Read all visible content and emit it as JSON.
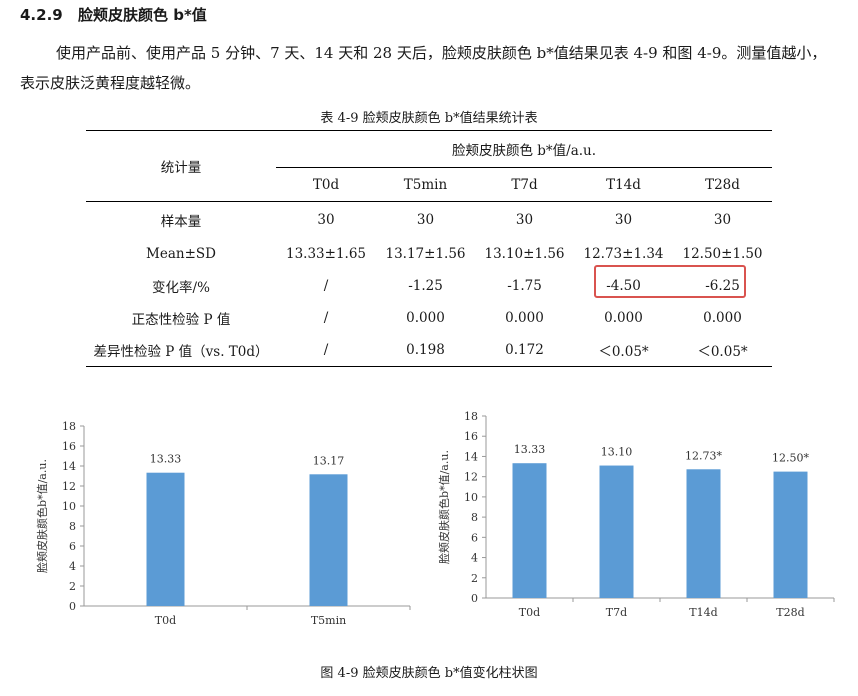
{
  "section": {
    "number": "4.2.9",
    "title": "脸颊皮肤颜色 b*值"
  },
  "paragraph": "使用产品前、使用产品 5 分钟、7 天、14 天和 28 天后，脸颊皮肤颜色 b*值结果见表 4-9 和图 4-9。测量值越小，表示皮肤泛黄程度越轻微。",
  "table": {
    "caption": "表 4-9  脸颊皮肤颜色 b*值结果统计表",
    "stat_header": "统计量",
    "group_header": "脸颊皮肤颜色 b*值/a.u.",
    "columns": [
      "T0d",
      "T5min",
      "T7d",
      "T14d",
      "T28d"
    ],
    "rows": [
      {
        "label": "样本量",
        "cells": [
          "30",
          "30",
          "30",
          "30",
          "30"
        ]
      },
      {
        "label": "Mean±SD",
        "cells": [
          "13.33±1.65",
          "13.17±1.56",
          "13.10±1.56",
          "12.73±1.34",
          "12.50±1.50"
        ]
      },
      {
        "label": "变化率/%",
        "cells": [
          "/",
          "-1.25",
          "-1.75",
          "-4.50",
          "-6.25"
        ]
      },
      {
        "label": "正态性检验 P 值",
        "cells": [
          "/",
          "0.000",
          "0.000",
          "0.000",
          "0.000"
        ]
      },
      {
        "label": "差异性检验 P 值（vs. T0d）",
        "cells": [
          "/",
          "0.198",
          "0.172",
          "＜0.05*",
          "＜0.05*"
        ]
      }
    ],
    "highlight_color": "#d9534f"
  },
  "chart_data": [
    {
      "type": "bar",
      "title": "",
      "ylabel": "脸颊皮肤颜色b*值/a.u.",
      "xlabel": "",
      "categories": [
        "T0d",
        "T5min"
      ],
      "values": [
        13.33,
        13.17
      ],
      "labels": [
        "13.33",
        "13.17"
      ],
      "ylim": [
        0,
        18
      ],
      "yticks": [
        0,
        2,
        4,
        6,
        8,
        10,
        12,
        14,
        16,
        18
      ],
      "bar_color": "#5b9bd5",
      "grid": false
    },
    {
      "type": "bar",
      "title": "",
      "ylabel": "脸颊皮肤颜色b*值/a.u.",
      "xlabel": "",
      "categories": [
        "T0d",
        "T7d",
        "T14d",
        "T28d"
      ],
      "values": [
        13.33,
        13.1,
        12.73,
        12.5
      ],
      "labels": [
        "13.33",
        "13.10",
        "12.73*",
        "12.50*"
      ],
      "ylim": [
        0,
        18
      ],
      "yticks": [
        0,
        2,
        4,
        6,
        8,
        10,
        12,
        14,
        16,
        18
      ],
      "bar_color": "#5b9bd5",
      "grid": false
    }
  ],
  "figure_caption": "图 4-9  脸颊皮肤颜色 b*值变化柱状图"
}
